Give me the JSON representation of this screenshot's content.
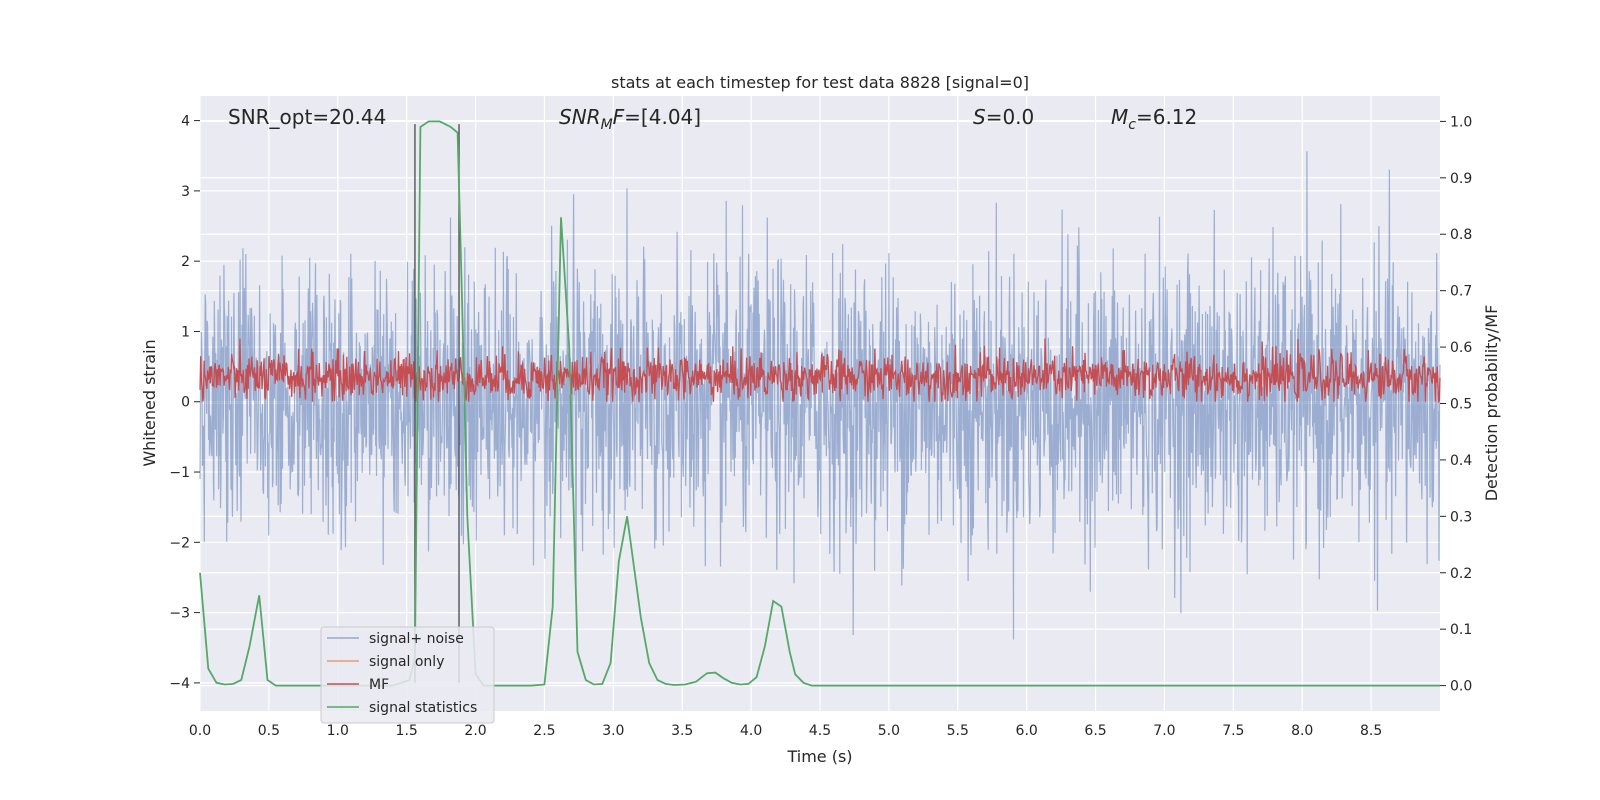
{
  "chart_data": {
    "type": "line",
    "title": "stats at each timestep for test data 8828 [signal=0]",
    "xlabel": "Time (s)",
    "ylabel": "Whitened strain",
    "y2label": "Detection probability/MF",
    "xlim": [
      0,
      9
    ],
    "ylim": [
      -4.4,
      4.35
    ],
    "y2lim": [
      -0.045,
      1.045
    ],
    "xticks": [
      0.0,
      0.5,
      1.0,
      1.5,
      2.0,
      2.5,
      3.0,
      3.5,
      4.0,
      4.5,
      5.0,
      5.5,
      6.0,
      6.5,
      7.0,
      7.5,
      8.0,
      8.5
    ],
    "yticks": [
      -4,
      -3,
      -2,
      -1,
      0,
      1,
      2,
      3,
      4
    ],
    "y2ticks": [
      0.0,
      0.1,
      0.2,
      0.3,
      0.4,
      0.5,
      0.6,
      0.7,
      0.8,
      0.9,
      1.0
    ],
    "annotations": [
      {
        "text": "SNR_opt=20.44",
        "x": 0.2,
        "y": 4.0
      },
      {
        "text": "SNR_MF=[4.04]",
        "x": 2.6,
        "y": 4.0
      },
      {
        "text": "S=0.0",
        "x": 5.6,
        "y": 4.0
      },
      {
        "text": "M_c=6.12",
        "x": 6.6,
        "y": 4.0
      }
    ],
    "vertical_lines": [
      1.56,
      1.88
    ],
    "legend": {
      "location": "lower-left",
      "entries": [
        "signal+ noise",
        "signal only",
        "MF",
        "signal statistics"
      ]
    },
    "series": [
      {
        "name": "signal+ noise",
        "axis": "left",
        "color": "#4c72b0",
        "kind": "noise",
        "amplitude_std": 1.0,
        "range": [
          -4.0,
          4.0
        ]
      },
      {
        "name": "signal only",
        "axis": "left",
        "color": "#dd8452",
        "values": []
      },
      {
        "name": "MF",
        "axis": "left",
        "color": "#c44e52",
        "kind": "noise",
        "center": 0.35,
        "range": [
          0.0,
          0.9
        ]
      },
      {
        "name": "signal statistics",
        "axis": "right",
        "color": "#55a868",
        "x": [
          0.0,
          0.06,
          0.12,
          0.18,
          0.24,
          0.3,
          0.36,
          0.43,
          0.49,
          0.55,
          0.6,
          1.0,
          1.4,
          1.52,
          1.56,
          1.6,
          1.66,
          1.74,
          1.82,
          1.87,
          1.9,
          1.94,
          2.0,
          2.06,
          2.1,
          2.2,
          2.4,
          2.5,
          2.56,
          2.62,
          2.68,
          2.74,
          2.8,
          2.86,
          2.92,
          2.98,
          3.04,
          3.1,
          3.2,
          3.26,
          3.32,
          3.38,
          3.44,
          3.52,
          3.6,
          3.68,
          3.74,
          3.8,
          3.86,
          3.92,
          3.98,
          4.04,
          4.1,
          4.16,
          4.22,
          4.28,
          4.32,
          4.38,
          4.44,
          4.5,
          9.0
        ],
        "values": [
          0.2,
          0.03,
          0.005,
          0.002,
          0.003,
          0.01,
          0.07,
          0.16,
          0.01,
          0.0,
          0.0,
          0.0,
          0.0,
          0.01,
          0.05,
          0.99,
          1.0,
          1.0,
          0.99,
          0.98,
          0.7,
          0.3,
          0.02,
          0.0,
          0.0,
          0.0,
          0.0,
          0.002,
          0.14,
          0.83,
          0.6,
          0.06,
          0.01,
          0.002,
          0.003,
          0.04,
          0.22,
          0.3,
          0.12,
          0.04,
          0.01,
          0.003,
          0.001,
          0.002,
          0.007,
          0.022,
          0.023,
          0.013,
          0.005,
          0.002,
          0.003,
          0.015,
          0.07,
          0.15,
          0.14,
          0.06,
          0.02,
          0.005,
          0.0,
          0.0,
          0.0
        ]
      }
    ]
  }
}
